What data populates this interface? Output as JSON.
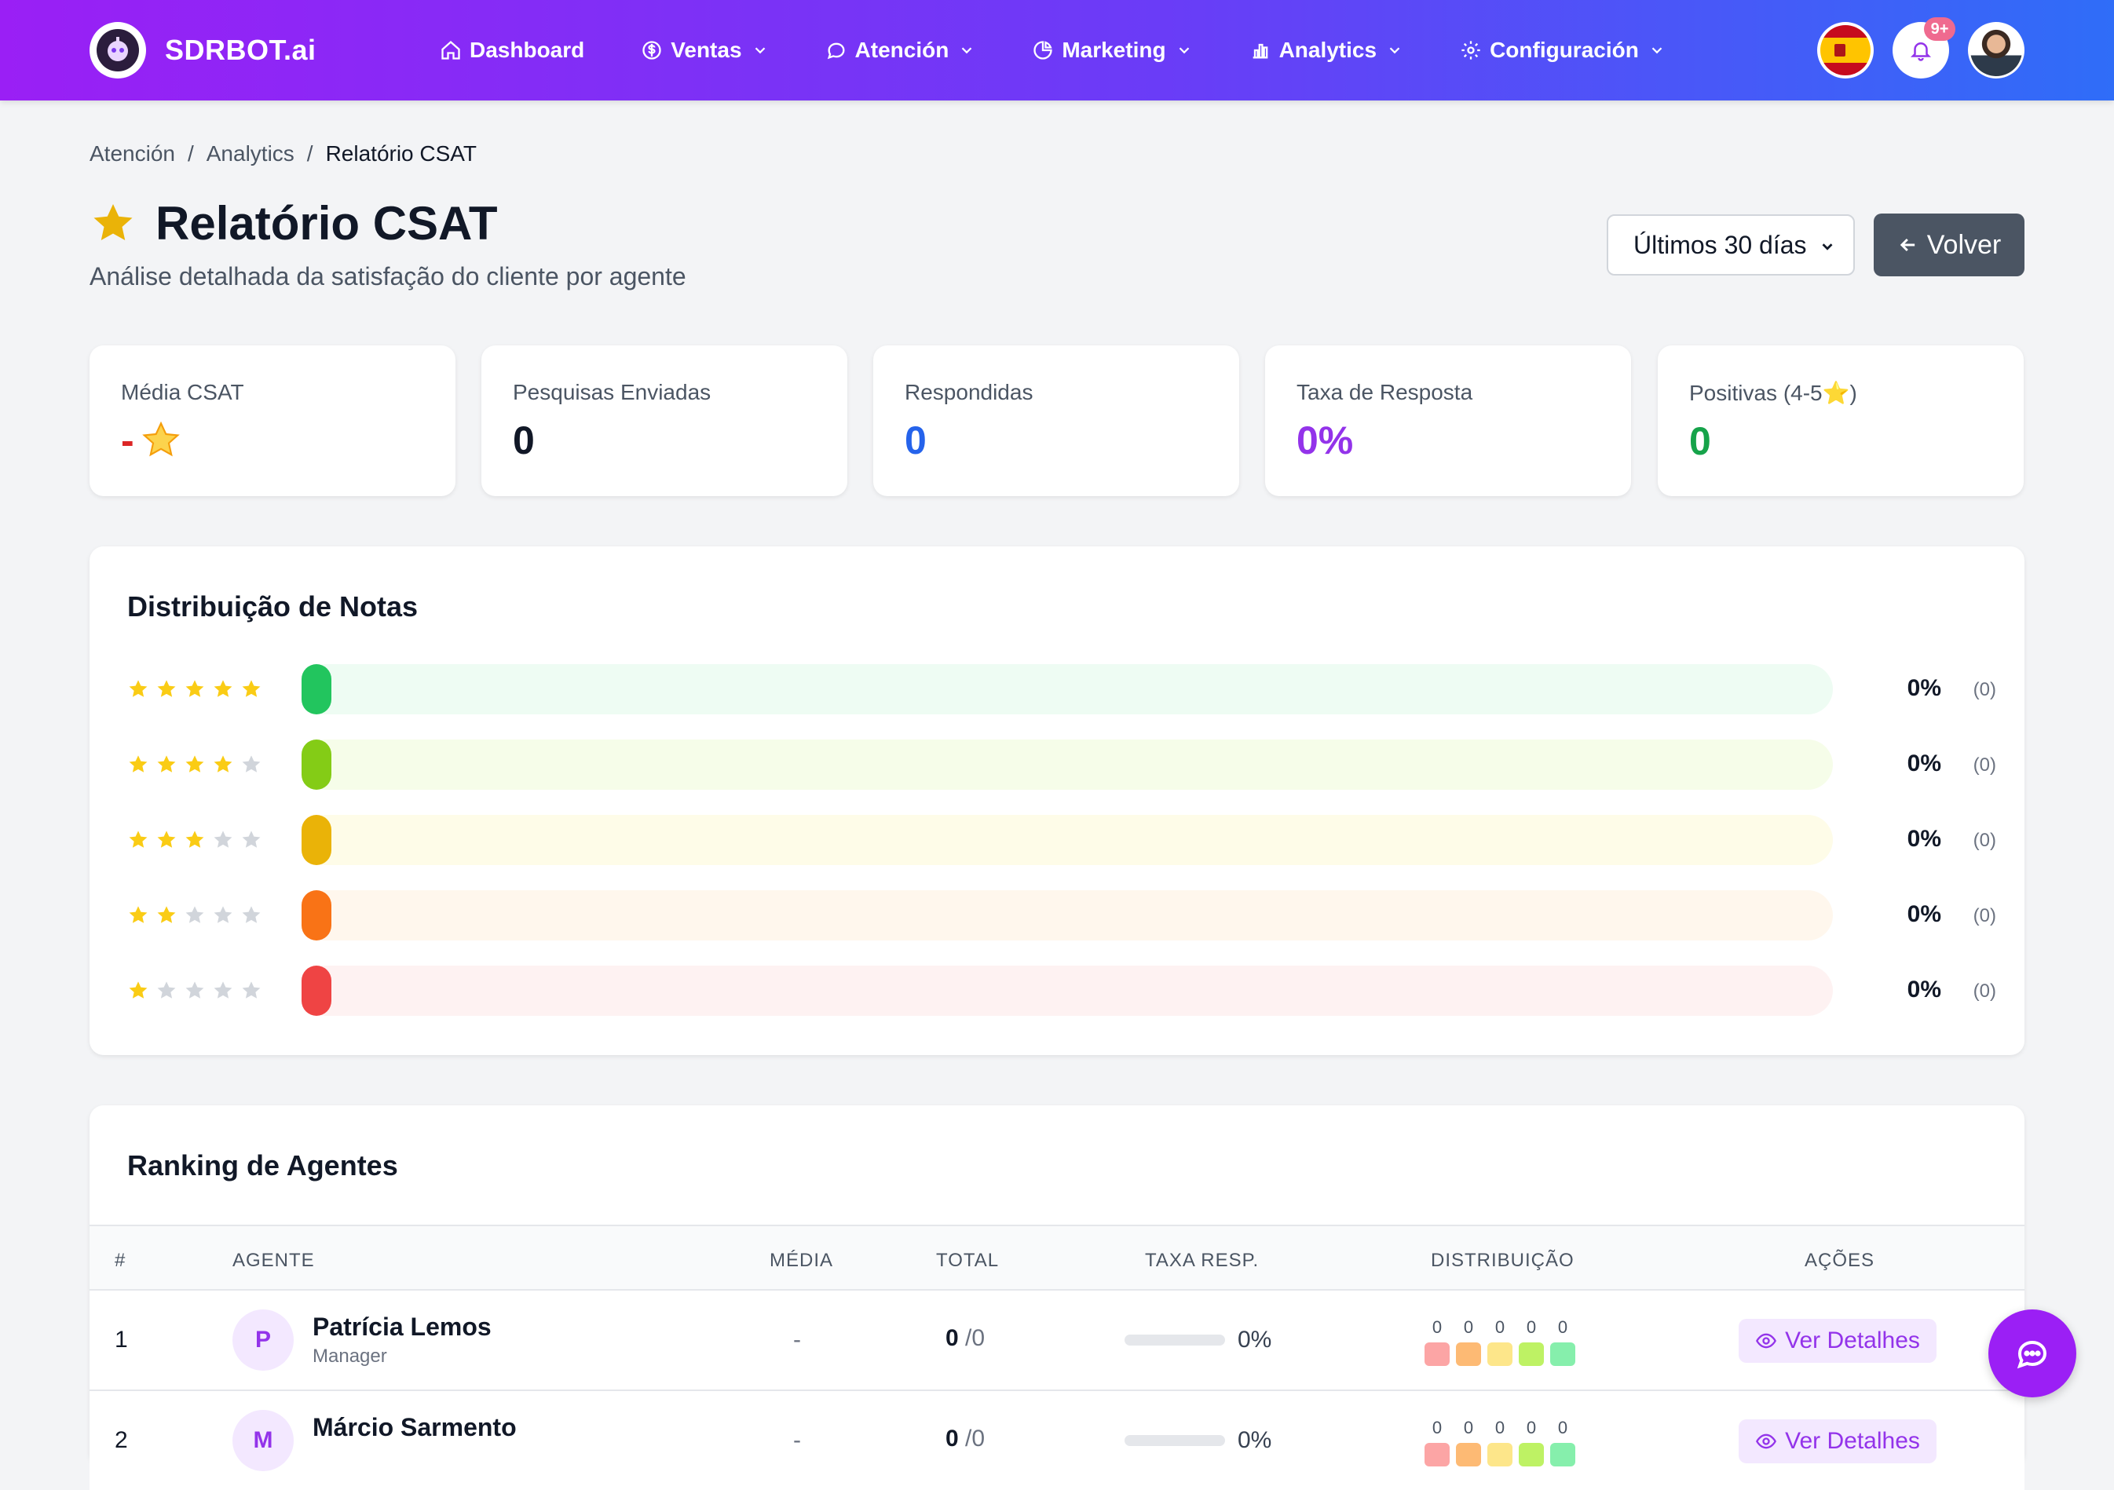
{
  "brand": {
    "name": "SDRBOT.ai"
  },
  "nav": {
    "items": [
      {
        "label": "Dashboard",
        "icon": "home-icon",
        "dropdown": false
      },
      {
        "label": "Ventas",
        "icon": "dollar-icon",
        "dropdown": true
      },
      {
        "label": "Atención",
        "icon": "chat-bubble-icon",
        "dropdown": true
      },
      {
        "label": "Marketing",
        "icon": "pie-chart-icon",
        "dropdown": true
      },
      {
        "label": "Analytics",
        "icon": "bar-chart-icon",
        "dropdown": true
      },
      {
        "label": "Configuración",
        "icon": "gear-icon",
        "dropdown": true
      }
    ],
    "notifications_badge": "9+"
  },
  "breadcrumb": [
    "Atención",
    "Analytics",
    "Relatório CSAT"
  ],
  "page": {
    "title": "Relatório CSAT",
    "subtitle": "Análise detalhada da satisfação do cliente por agente",
    "period_select": "Últimos 30 días",
    "back_button": "Volver"
  },
  "stats": [
    {
      "label": "Média CSAT",
      "value": "-",
      "color": "#dc2626",
      "suffix_icon": "star-emoji-icon"
    },
    {
      "label": "Pesquisas Enviadas",
      "value": "0",
      "color": "#111827"
    },
    {
      "label": "Respondidas",
      "value": "0",
      "color": "#2563eb"
    },
    {
      "label": "Taxa de Resposta",
      "value": "0%",
      "color": "#9333ea"
    },
    {
      "label": "Positivas (4-5⭐)",
      "value": "0",
      "color": "#16a34a"
    }
  ],
  "distribution": {
    "title": "Distribuição de Notas",
    "rows": [
      {
        "stars": 5,
        "percent": "0%",
        "count": "(0)",
        "fill": "#22c55e",
        "track": "#eefcf3"
      },
      {
        "stars": 4,
        "percent": "0%",
        "count": "(0)",
        "fill": "#84cc16",
        "track": "#f6fde9"
      },
      {
        "stars": 3,
        "percent": "0%",
        "count": "(0)",
        "fill": "#eab308",
        "track": "#fefce8"
      },
      {
        "stars": 2,
        "percent": "0%",
        "count": "(0)",
        "fill": "#f97316",
        "track": "#fff7ed"
      },
      {
        "stars": 1,
        "percent": "0%",
        "count": "(0)",
        "fill": "#ef4444",
        "track": "#fef2f2"
      }
    ]
  },
  "ranking": {
    "title": "Ranking de Agentes",
    "columns": [
      "#",
      "AGENTE",
      "MÉDIA",
      "TOTAL",
      "TAXA RESP.",
      "DISTRIBUIÇÃO",
      "AÇÕES"
    ],
    "rows": [
      {
        "rank": "1",
        "initial": "P",
        "name": "Patrícia Lemos",
        "role": "Manager",
        "media": "-",
        "total": "0",
        "total_of": "/0",
        "taxa": "0%",
        "dist": [
          "0",
          "0",
          "0",
          "0",
          "0"
        ],
        "action": "Ver Detalhes"
      },
      {
        "rank": "2",
        "initial": "M",
        "name": "Márcio Sarmento",
        "role": "",
        "media": "-",
        "total": "0",
        "total_of": "/0",
        "taxa": "0%",
        "dist": [
          "0",
          "0",
          "0",
          "0",
          "0"
        ],
        "action": "Ver Detalhes"
      }
    ],
    "dist_colors": [
      "#fca5a5",
      "#fdba74",
      "#fde68a",
      "#bef264",
      "#86efac"
    ]
  }
}
